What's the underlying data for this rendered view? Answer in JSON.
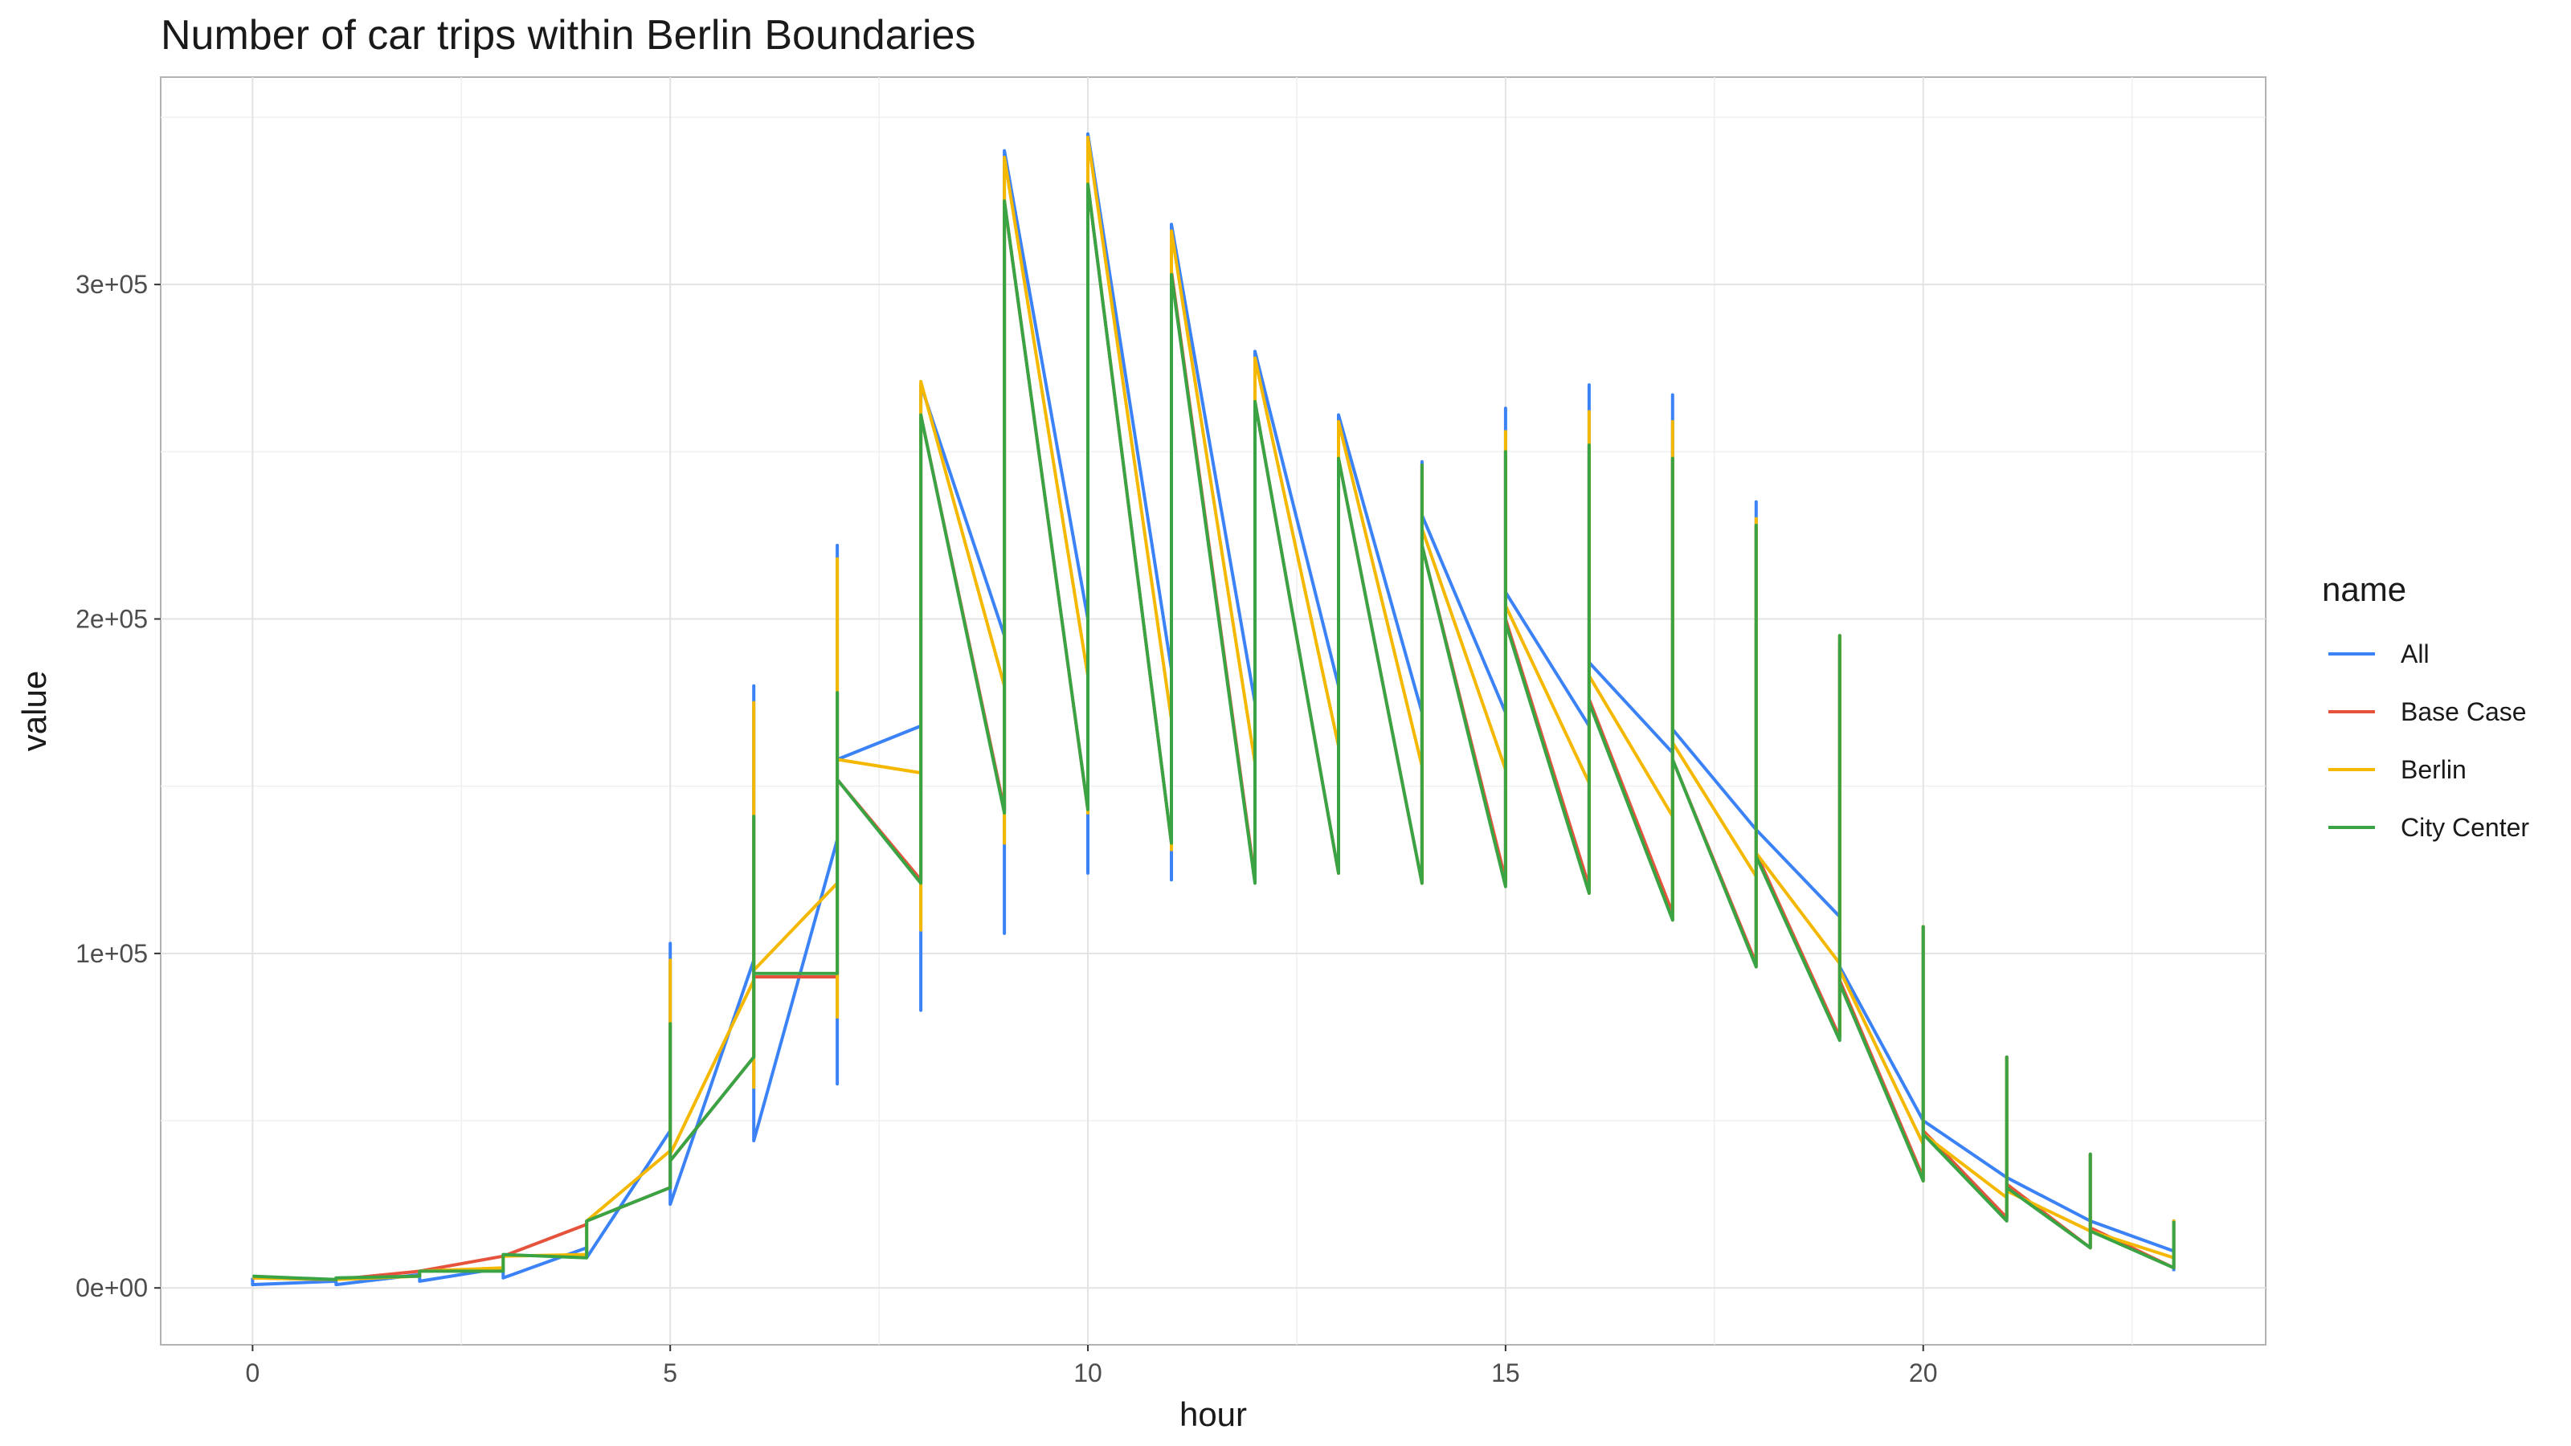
{
  "chart_data": {
    "type": "line",
    "title": "Number of car trips within Berlin Boundaries",
    "xlabel": "hour",
    "ylabel": "value",
    "xlim": [
      -1.1,
      24.1
    ],
    "ylim": [
      -17000,
      362000
    ],
    "x_ticks": [
      0,
      5,
      10,
      15,
      20
    ],
    "x_tick_labels": [
      "0",
      "5",
      "10",
      "15",
      "20"
    ],
    "y_ticks": [
      0,
      100000,
      200000,
      300000
    ],
    "y_tick_labels": [
      "0e+00",
      "1e+05",
      "2e+05",
      "3e+05"
    ],
    "grid": true,
    "legend": {
      "title": "name",
      "position": "right"
    },
    "series": [
      {
        "name": "All",
        "color": "#3b82f6",
        "points": [
          [
            0,
            3000
          ],
          [
            0,
            1000
          ],
          [
            1,
            2000
          ],
          [
            1,
            1000
          ],
          [
            2,
            4000
          ],
          [
            2,
            2000
          ],
          [
            3,
            6000
          ],
          [
            3,
            3000
          ],
          [
            4,
            12000
          ],
          [
            4,
            9000
          ],
          [
            5,
            47000
          ],
          [
            5,
            103000
          ],
          [
            5,
            25000
          ],
          [
            6,
            98000
          ],
          [
            6,
            180000
          ],
          [
            6,
            44000
          ],
          [
            7,
            134000
          ],
          [
            7,
            222000
          ],
          [
            7,
            61000
          ],
          [
            7,
            158000
          ],
          [
            8,
            168000
          ],
          [
            8,
            270000
          ],
          [
            8,
            83000
          ],
          [
            8,
            270000
          ],
          [
            9,
            195000
          ],
          [
            9,
            340000
          ],
          [
            9,
            106000
          ],
          [
            9,
            340000
          ],
          [
            10,
            200000
          ],
          [
            10,
            345000
          ],
          [
            10,
            124000
          ],
          [
            10,
            345000
          ],
          [
            11,
            185000
          ],
          [
            11,
            318000
          ],
          [
            11,
            122000
          ],
          [
            11,
            318000
          ],
          [
            12,
            175000
          ],
          [
            12,
            280000
          ],
          [
            12,
            125000
          ],
          [
            12,
            280000
          ],
          [
            13,
            180000
          ],
          [
            13,
            261000
          ],
          [
            13,
            124000
          ],
          [
            13,
            261000
          ],
          [
            14,
            172000
          ],
          [
            14,
            247000
          ],
          [
            14,
            121000
          ],
          [
            14,
            231000
          ],
          [
            15,
            172000
          ],
          [
            15,
            263000
          ],
          [
            15,
            121000
          ],
          [
            15,
            208000
          ],
          [
            16,
            168000
          ],
          [
            16,
            270000
          ],
          [
            16,
            118000
          ],
          [
            16,
            187000
          ],
          [
            17,
            160000
          ],
          [
            17,
            267000
          ],
          [
            17,
            110000
          ],
          [
            17,
            167000
          ],
          [
            18,
            137000
          ],
          [
            18,
            235000
          ],
          [
            18,
            96000
          ],
          [
            18,
            137000
          ],
          [
            19,
            111000
          ],
          [
            19,
            192000
          ],
          [
            19,
            75000
          ],
          [
            19,
            96000
          ],
          [
            20,
            50000
          ],
          [
            20,
            108000
          ],
          [
            20,
            32000
          ],
          [
            20,
            50000
          ],
          [
            21,
            33000
          ],
          [
            21,
            69000
          ],
          [
            21,
            21000
          ],
          [
            21,
            33000
          ],
          [
            22,
            20000
          ],
          [
            22,
            40000
          ],
          [
            22,
            12000
          ],
          [
            22,
            20000
          ],
          [
            23,
            11000
          ],
          [
            23,
            20000
          ],
          [
            23,
            5000
          ]
        ]
      },
      {
        "name": "Base Case",
        "color": "#e5533c",
        "points": [
          [
            0,
            3000
          ],
          [
            1,
            2500
          ],
          [
            2,
            5000
          ],
          [
            3,
            9500
          ],
          [
            4,
            19000
          ],
          [
            4,
            20000
          ],
          [
            5,
            30000
          ],
          [
            5,
            79000
          ],
          [
            5,
            38000
          ],
          [
            6,
            69000
          ],
          [
            6,
            140000
          ],
          [
            6,
            93000
          ],
          [
            7,
            93000
          ],
          [
            7,
            178000
          ],
          [
            7,
            152000
          ],
          [
            8,
            122000
          ],
          [
            8,
            261000
          ],
          [
            9,
            143000
          ],
          [
            9,
            325000
          ],
          [
            10,
            143000
          ],
          [
            10,
            330000
          ],
          [
            11,
            133000
          ],
          [
            11,
            304000
          ],
          [
            12,
            122000
          ],
          [
            12,
            265000
          ],
          [
            13,
            124000
          ],
          [
            13,
            248000
          ],
          [
            14,
            121000
          ],
          [
            14,
            246000
          ],
          [
            14,
            222000
          ],
          [
            15,
            122000
          ],
          [
            15,
            250000
          ],
          [
            15,
            200000
          ],
          [
            16,
            120000
          ],
          [
            16,
            252000
          ],
          [
            16,
            176000
          ],
          [
            17,
            112000
          ],
          [
            17,
            248000
          ],
          [
            17,
            158000
          ],
          [
            18,
            97000
          ],
          [
            18,
            228000
          ],
          [
            18,
            130000
          ],
          [
            19,
            75000
          ],
          [
            19,
            195000
          ],
          [
            19,
            92000
          ],
          [
            20,
            33000
          ],
          [
            20,
            108000
          ],
          [
            20,
            47000
          ],
          [
            21,
            21000
          ],
          [
            21,
            69000
          ],
          [
            21,
            31000
          ],
          [
            22,
            12000
          ],
          [
            22,
            40000
          ],
          [
            22,
            18000
          ],
          [
            23,
            6000
          ],
          [
            23,
            20000
          ]
        ]
      },
      {
        "name": "Berlin",
        "color": "#f5b800",
        "points": [
          [
            0,
            3000
          ],
          [
            1,
            2500
          ],
          [
            2,
            3500
          ],
          [
            2,
            5000
          ],
          [
            3,
            6000
          ],
          [
            3,
            9500
          ],
          [
            4,
            10000
          ],
          [
            4,
            20000
          ],
          [
            5,
            41000
          ],
          [
            5,
            98000
          ],
          [
            5,
            40000
          ],
          [
            6,
            92000
          ],
          [
            6,
            175000
          ],
          [
            6,
            60000
          ],
          [
            6,
            95000
          ],
          [
            7,
            121000
          ],
          [
            7,
            218000
          ],
          [
            7,
            81000
          ],
          [
            7,
            158000
          ],
          [
            8,
            154000
          ],
          [
            8,
            271000
          ],
          [
            8,
            107000
          ],
          [
            8,
            271000
          ],
          [
            9,
            180000
          ],
          [
            9,
            338000
          ],
          [
            9,
            133000
          ],
          [
            9,
            338000
          ],
          [
            10,
            183000
          ],
          [
            10,
            344000
          ],
          [
            10,
            142000
          ],
          [
            10,
            344000
          ],
          [
            11,
            170000
          ],
          [
            11,
            316000
          ],
          [
            11,
            131000
          ],
          [
            11,
            316000
          ],
          [
            12,
            157000
          ],
          [
            12,
            278000
          ],
          [
            12,
            122000
          ],
          [
            12,
            278000
          ],
          [
            13,
            162000
          ],
          [
            13,
            259000
          ],
          [
            13,
            124000
          ],
          [
            13,
            259000
          ],
          [
            14,
            156000
          ],
          [
            14,
            244000
          ],
          [
            14,
            121000
          ],
          [
            14,
            227000
          ],
          [
            15,
            155000
          ],
          [
            15,
            256000
          ],
          [
            15,
            121000
          ],
          [
            15,
            204000
          ],
          [
            16,
            151000
          ],
          [
            16,
            262000
          ],
          [
            16,
            118000
          ],
          [
            16,
            183000
          ],
          [
            17,
            141000
          ],
          [
            17,
            259000
          ],
          [
            17,
            110000
          ],
          [
            17,
            163000
          ],
          [
            18,
            123000
          ],
          [
            18,
            230000
          ],
          [
            18,
            96000
          ],
          [
            18,
            130000
          ],
          [
            19,
            97000
          ],
          [
            19,
            195000
          ],
          [
            19,
            75000
          ],
          [
            19,
            95000
          ],
          [
            20,
            43000
          ],
          [
            20,
            108000
          ],
          [
            20,
            32000
          ],
          [
            20,
            46000
          ],
          [
            21,
            27000
          ],
          [
            21,
            69000
          ],
          [
            21,
            21000
          ],
          [
            21,
            29000
          ],
          [
            22,
            17000
          ],
          [
            22,
            40000
          ],
          [
            22,
            12000
          ],
          [
            22,
            17000
          ],
          [
            23,
            9000
          ],
          [
            23,
            20000
          ],
          [
            23,
            6000
          ]
        ]
      },
      {
        "name": "City Center",
        "color": "#3aa444",
        "points": [
          [
            0,
            3500
          ],
          [
            1,
            2500
          ],
          [
            1,
            3000
          ],
          [
            2,
            3500
          ],
          [
            2,
            5000
          ],
          [
            3,
            5000
          ],
          [
            3,
            10000
          ],
          [
            4,
            9000
          ],
          [
            4,
            20000
          ],
          [
            5,
            30000
          ],
          [
            5,
            79000
          ],
          [
            5,
            38000
          ],
          [
            6,
            69000
          ],
          [
            6,
            141000
          ],
          [
            6,
            94000
          ],
          [
            7,
            94000
          ],
          [
            7,
            178000
          ],
          [
            7,
            152000
          ],
          [
            8,
            121000
          ],
          [
            8,
            261000
          ],
          [
            9,
            142000
          ],
          [
            9,
            325000
          ],
          [
            10,
            143000
          ],
          [
            10,
            330000
          ],
          [
            11,
            133000
          ],
          [
            11,
            303000
          ],
          [
            12,
            121000
          ],
          [
            12,
            265000
          ],
          [
            13,
            124000
          ],
          [
            13,
            248000
          ],
          [
            14,
            121000
          ],
          [
            14,
            246000
          ],
          [
            14,
            222000
          ],
          [
            15,
            120000
          ],
          [
            15,
            250000
          ],
          [
            15,
            199000
          ],
          [
            16,
            118000
          ],
          [
            16,
            252000
          ],
          [
            16,
            175000
          ],
          [
            17,
            110000
          ],
          [
            17,
            248000
          ],
          [
            17,
            158000
          ],
          [
            18,
            96000
          ],
          [
            18,
            228000
          ],
          [
            18,
            129000
          ],
          [
            19,
            74000
          ],
          [
            19,
            195000
          ],
          [
            19,
            91000
          ],
          [
            20,
            32000
          ],
          [
            20,
            108000
          ],
          [
            20,
            46000
          ],
          [
            21,
            20000
          ],
          [
            21,
            69000
          ],
          [
            21,
            30000
          ],
          [
            22,
            12000
          ],
          [
            22,
            40000
          ],
          [
            22,
            17000
          ],
          [
            23,
            6000
          ],
          [
            23,
            20000
          ]
        ]
      }
    ]
  }
}
